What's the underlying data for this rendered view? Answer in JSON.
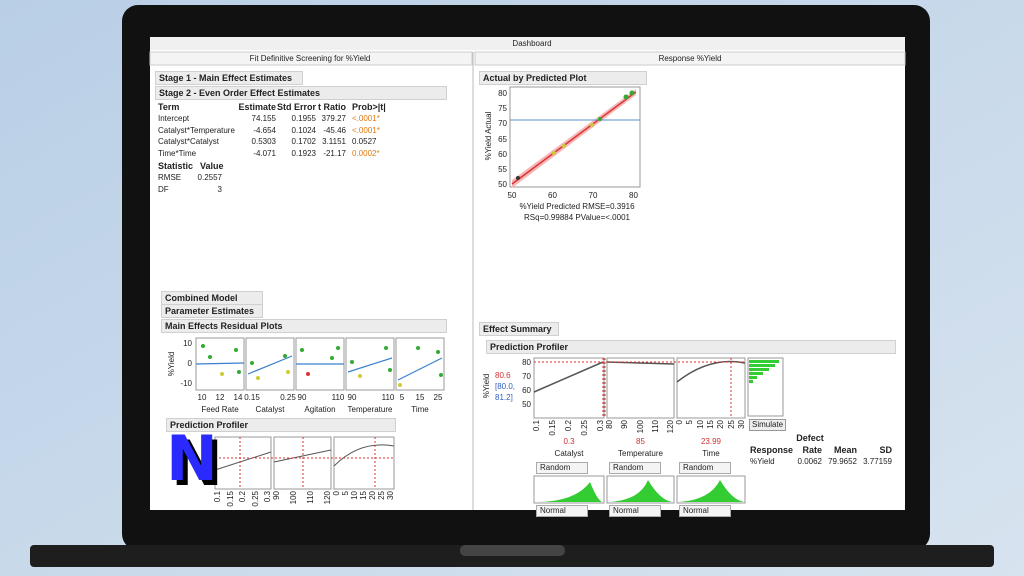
{
  "window": {
    "title": "Dashboard"
  },
  "left_pane": {
    "title": "Fit Definitive Screening for %Yield",
    "stage1": "Stage 1 - Main Effect Estimates",
    "stage2": "Stage 2 - Even Order Effect Estimates",
    "estimates": {
      "columns": [
        "Term",
        "Estimate",
        "Std Error",
        "t Ratio",
        "Prob>|t|"
      ],
      "rows": [
        [
          "Intercept",
          "74.155",
          "0.1955",
          "379.27",
          "<.0001*"
        ],
        [
          "Catalyst*Temperature",
          "-4.654",
          "0.1024",
          "-45.46",
          "<.0001*"
        ],
        [
          "Catalyst*Catalyst",
          "0.5303",
          "0.1702",
          "3.1151",
          "0.0527"
        ],
        [
          "Time*Time",
          "-4.071",
          "0.1923",
          "-21.17",
          "0.0002*"
        ]
      ]
    },
    "stats": {
      "columns": [
        "Statistic",
        "Value"
      ],
      "rows": [
        [
          "RMSE",
          "0.2557"
        ],
        [
          "DF",
          "3"
        ]
      ]
    },
    "combined": [
      "Combined Model",
      "Parameter Estimates"
    ],
    "residual_plots": {
      "title": "Main Effects Residual Plots",
      "y_label": "%Yield",
      "y_ticks": [
        "10",
        "0",
        "-10"
      ],
      "panels": [
        {
          "label": "Feed Rate",
          "ticks": [
            "10",
            "12",
            "14"
          ]
        },
        {
          "label": "Catalyst",
          "ticks": [
            "0.15",
            "0.25"
          ]
        },
        {
          "label": "Agitation",
          "ticks": [
            "90",
            "110"
          ]
        },
        {
          "label": "Temperature",
          "ticks": [
            "90",
            "110"
          ]
        },
        {
          "label": "Time",
          "ticks": [
            "5",
            "15",
            "25"
          ]
        }
      ]
    },
    "profiler": {
      "title": "Prediction Profiler",
      "logo": "N",
      "panels": [
        [
          "0.1",
          "0.15",
          "0.2",
          "0.25",
          "0.3"
        ],
        [
          "90",
          "100",
          "110",
          "120"
        ],
        [
          "0",
          "5",
          "10",
          "15",
          "20",
          "25",
          "30"
        ]
      ]
    }
  },
  "right_pane": {
    "title": "Response %Yield",
    "actual_plot": {
      "title": "Actual by Predicted Plot",
      "y_label": "%Yield Actual",
      "y_ticks": [
        "80",
        "75",
        "70",
        "65",
        "60",
        "55",
        "50"
      ],
      "x_ticks": [
        "50",
        "60",
        "70",
        "80"
      ],
      "caption": [
        "%Yield Predicted RMSE=0.3916",
        "RSq=0.99884 PValue=<.0001"
      ]
    },
    "effect_summary": "Effect Summary",
    "profiler": {
      "title": "Prediction Profiler",
      "y_label": "%Yield",
      "current": "80.6",
      "ci": [
        "[80.0,",
        "81.2]"
      ],
      "y_ticks": [
        "80",
        "70",
        "60",
        "50"
      ],
      "factors": [
        {
          "label": "Catalyst",
          "value": "0.3",
          "ticks": [
            "0.1",
            "0.15",
            "0.2",
            "0.25",
            "0.3"
          ]
        },
        {
          "label": "Temperature",
          "value": "85",
          "ticks": [
            "80",
            "90",
            "100",
            "110",
            "120"
          ]
        },
        {
          "label": "Time",
          "value": "23.99",
          "ticks": [
            "0",
            "5",
            "10",
            "15",
            "20",
            "25",
            "30"
          ]
        }
      ],
      "random": "Random",
      "normal": "Normal",
      "simulate": "Simulate",
      "defect_table": {
        "group": "Defect",
        "columns": [
          "Response",
          "Rate",
          "Mean",
          "SD"
        ],
        "row": [
          "%Yield",
          "0.0062",
          "79.9652",
          "3.77159"
        ]
      }
    }
  }
}
